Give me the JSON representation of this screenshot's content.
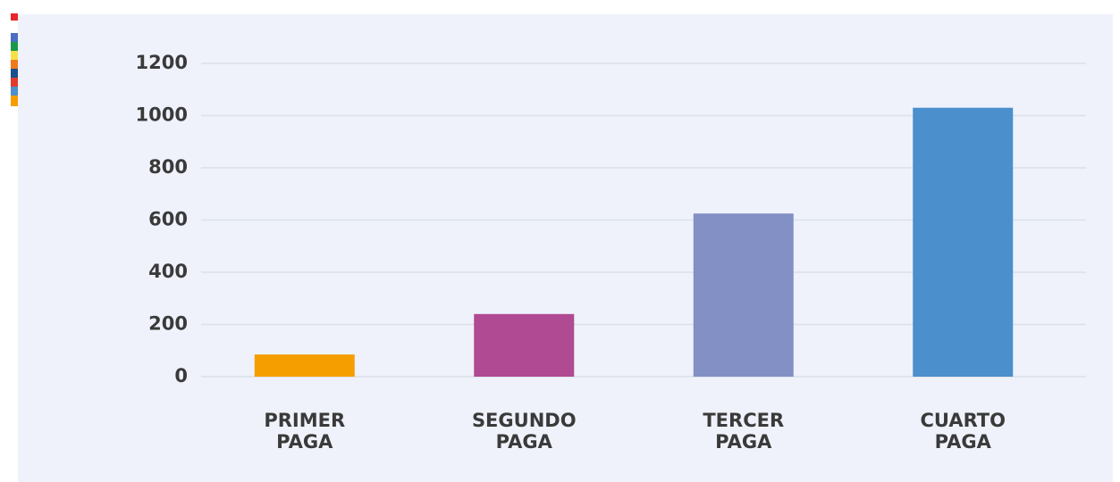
{
  "chart_data": {
    "type": "bar",
    "categories": [
      "PRIMER PAGA",
      "SEGUNDO PAGA",
      "TERCER PAGA",
      "CUARTO PAGA"
    ],
    "values": [
      85,
      240,
      625,
      1030
    ],
    "colors": [
      "#f59e00",
      "#b04a92",
      "#8290c6",
      "#4b8fcc"
    ],
    "ylim": [
      0,
      1200
    ],
    "yticks": [
      0,
      200,
      400,
      600,
      800,
      1000,
      1200
    ],
    "grid": true
  }
}
